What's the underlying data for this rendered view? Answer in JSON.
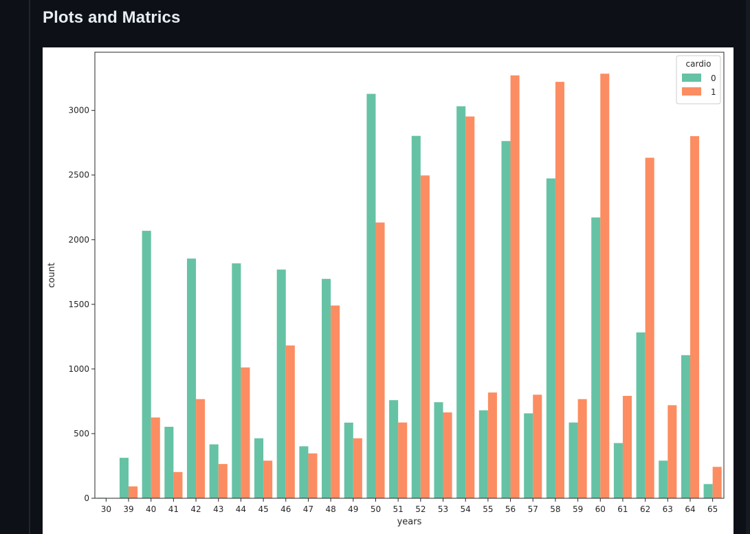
{
  "page": {
    "heading": "Plots and Matrics"
  },
  "chart_data": {
    "type": "bar",
    "xlabel": "years",
    "ylabel": "count",
    "ylim": [
      0,
      3450
    ],
    "yticks": [
      0,
      500,
      1000,
      1500,
      2000,
      2500,
      3000
    ],
    "legend": {
      "title": "cardio",
      "position": "top-right"
    },
    "categories": [
      "30",
      "39",
      "40",
      "41",
      "42",
      "43",
      "44",
      "45",
      "46",
      "47",
      "48",
      "49",
      "50",
      "51",
      "52",
      "53",
      "54",
      "55",
      "56",
      "57",
      "58",
      "59",
      "60",
      "61",
      "62",
      "63",
      "64",
      "65"
    ],
    "series": [
      {
        "name": "0",
        "color": "#66c2a5",
        "values": [
          4,
          313,
          2069,
          553,
          1854,
          417,
          1817,
          464,
          1769,
          402,
          1697,
          585,
          3128,
          759,
          2803,
          743,
          3032,
          680,
          2763,
          657,
          2474,
          586,
          2172,
          427,
          1283,
          291,
          1107,
          110
        ]
      },
      {
        "name": "1",
        "color": "#fc8d62",
        "values": [
          0,
          92,
          625,
          203,
          767,
          265,
          1012,
          291,
          1182,
          347,
          1491,
          464,
          2133,
          586,
          2497,
          664,
          2953,
          818,
          3271,
          801,
          3221,
          767,
          3284,
          792,
          2634,
          720,
          2801,
          243
        ]
      }
    ]
  }
}
